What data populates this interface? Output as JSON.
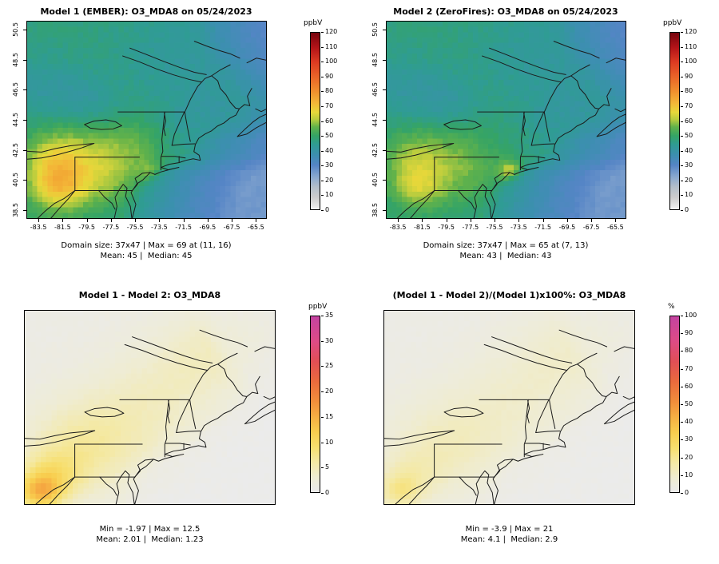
{
  "figure": {
    "background": "#ffffff",
    "scales": {
      "conc": {
        "min": 0,
        "max": 120,
        "stops": [
          [
            0,
            "#f2f2f2"
          ],
          [
            8,
            "#cdcdcd"
          ],
          [
            15,
            "#b4bfca"
          ],
          [
            22,
            "#8aa9cf"
          ],
          [
            30,
            "#5585c6"
          ],
          [
            37,
            "#3c8fb0"
          ],
          [
            44,
            "#2f9c93"
          ],
          [
            50,
            "#35a465"
          ],
          [
            56,
            "#62b24a"
          ],
          [
            61,
            "#b8cc3e"
          ],
          [
            66,
            "#e8d83a"
          ],
          [
            72,
            "#f3b838"
          ],
          [
            80,
            "#f0902e"
          ],
          [
            90,
            "#ea6428"
          ],
          [
            100,
            "#dd3b22"
          ],
          [
            110,
            "#b31318"
          ],
          [
            120,
            "#77050e"
          ]
        ]
      },
      "diff": {
        "min": 0,
        "max": 35,
        "stops": [
          [
            0,
            "#ebebeb"
          ],
          [
            3,
            "#efecd2"
          ],
          [
            6,
            "#f4e9a4"
          ],
          [
            9,
            "#f7df6e"
          ],
          [
            12,
            "#f8cd4e"
          ],
          [
            15,
            "#f6ae43"
          ],
          [
            18,
            "#f18f3b"
          ],
          [
            22,
            "#ea6a3d"
          ],
          [
            26,
            "#e14f55"
          ],
          [
            30,
            "#dd4b86"
          ],
          [
            35,
            "#c443a1"
          ]
        ]
      },
      "pct": {
        "min": 0,
        "max": 100,
        "stops": [
          [
            0,
            "#ebebeb"
          ],
          [
            8,
            "#efecd2"
          ],
          [
            17,
            "#f4e9a4"
          ],
          [
            25,
            "#f7df6e"
          ],
          [
            34,
            "#f8cd4e"
          ],
          [
            43,
            "#f6ae43"
          ],
          [
            51,
            "#f18f3b"
          ],
          [
            63,
            "#ea6a3d"
          ],
          [
            74,
            "#e14f55"
          ],
          [
            86,
            "#dd4b86"
          ],
          [
            100,
            "#c443a1"
          ]
        ]
      }
    },
    "panels": [
      {
        "id": "model1",
        "title": "Model 1 (EMBER): O3_MDA8 on 05/24/2023",
        "caption_line1": "Domain size: 37x47 | Max = 69 at (11, 16)",
        "caption_line2": "Mean: 45 |  Median: 45",
        "colorbar": {
          "unit": "ppbV",
          "scale": "conc",
          "ticks": [
            0,
            10,
            20,
            30,
            40,
            50,
            60,
            70,
            80,
            90,
            100,
            110,
            120
          ]
        },
        "x_ticks": [
          -83.5,
          -81.5,
          -79.5,
          -77.5,
          -75.5,
          -73.5,
          -71.5,
          -69.5,
          -67.5,
          -65.5
        ],
        "y_ticks": [
          38.5,
          40.5,
          42.5,
          44.5,
          46.5,
          48.5,
          50.5
        ]
      },
      {
        "id": "model2",
        "title": "Model 2 (ZeroFires): O3_MDA8 on 05/24/2023",
        "caption_line1": "Domain size: 37x47 | Max = 65 at (7, 13)",
        "caption_line2": "Mean: 43 |  Median: 43",
        "colorbar": {
          "unit": "ppbV",
          "scale": "conc",
          "ticks": [
            0,
            10,
            20,
            30,
            40,
            50,
            60,
            70,
            80,
            90,
            100,
            110,
            120
          ]
        },
        "x_ticks": [
          -83.5,
          -81.5,
          -79.5,
          -77.5,
          -75.5,
          -73.5,
          -71.5,
          -69.5,
          -67.5,
          -65.5
        ],
        "y_ticks": [
          38.5,
          40.5,
          42.5,
          44.5,
          46.5,
          48.5,
          50.5
        ]
      },
      {
        "id": "difference",
        "title": "Model 1 - Model 2: O3_MDA8",
        "caption_line1": "Min = -1.97 | Max = 12.5",
        "caption_line2": "Mean: 2.01 |  Median: 1.23",
        "colorbar": {
          "unit": "ppbV",
          "scale": "diff",
          "ticks": [
            0,
            5,
            10,
            15,
            20,
            25,
            30,
            35
          ]
        }
      },
      {
        "id": "percent-difference",
        "title": "(Model 1 - Model 2)/(Model 1)x100%: O3_MDA8",
        "caption_line1": "Min = -3.9 | Max = 21",
        "caption_line2": "Mean: 4.1 |  Median: 2.9",
        "colorbar": {
          "unit": "%",
          "scale": "pct",
          "ticks": [
            0,
            10,
            20,
            30,
            40,
            50,
            60,
            70,
            80,
            90,
            100
          ]
        }
      }
    ]
  },
  "chart_data": [
    {
      "type": "heatmap",
      "position": "top-left",
      "title": "Model 1 (EMBER): O3_MDA8 on 05/24/2023",
      "model": "Model 1 (EMBER)",
      "variable": "O3_MDA8",
      "date": "05/24/2023",
      "units": "ppbV",
      "grid": {
        "nx": 47,
        "ny": 37
      },
      "x_axis": {
        "range": [
          -84.5,
          -64.6
        ],
        "ticks": [
          -83.5,
          -81.5,
          -79.5,
          -77.5,
          -75.5,
          -73.5,
          -71.5,
          -69.5,
          -67.5,
          -65.5
        ]
      },
      "y_axis": {
        "range": [
          37.9,
          51.1
        ],
        "ticks": [
          38.5,
          40.5,
          42.5,
          44.5,
          46.5,
          48.5,
          50.5
        ]
      },
      "color_scale": {
        "units": "ppbV",
        "range": [
          0,
          120
        ],
        "ticks": [
          0,
          10,
          20,
          30,
          40,
          50,
          60,
          70,
          80,
          90,
          100,
          110,
          120
        ]
      },
      "stats": {
        "domain_size": "37x47",
        "max": 69,
        "max_at": [
          11,
          16
        ],
        "mean": 45,
        "median": 45
      },
      "approx_field": {
        "kind": "conc",
        "land_base": 47,
        "ocean_base": 44,
        "ocean_grad": 18,
        "noise": 2.5,
        "blobs": [
          {
            "x": 0.13,
            "y": 0.85,
            "r": 0.09,
            "a": 19
          },
          {
            "x": 0.1,
            "y": 0.7,
            "r": 0.09,
            "a": 11
          },
          {
            "x": 0.24,
            "y": 0.66,
            "r": 0.14,
            "a": 11
          },
          {
            "x": 0.35,
            "y": 0.79,
            "r": 0.11,
            "a": 8
          },
          {
            "x": 0.46,
            "y": 0.62,
            "r": 0.08,
            "a": 5
          },
          {
            "x": 0.52,
            "y": 0.77,
            "r": 0.04,
            "a": 8
          },
          {
            "x": 0.25,
            "y": 0.44,
            "r": 0.1,
            "a": -6
          },
          {
            "x": 0.06,
            "y": 0.34,
            "r": 0.12,
            "a": -5
          },
          {
            "x": 0.62,
            "y": 0.16,
            "r": 0.18,
            "a": -4
          },
          {
            "x": 0.78,
            "y": 0.48,
            "r": 0.14,
            "a": -5
          },
          {
            "x": 0.95,
            "y": 0.1,
            "r": 0.15,
            "a": -4
          }
        ]
      }
    },
    {
      "type": "heatmap",
      "position": "top-right",
      "title": "Model 2 (ZeroFires): O3_MDA8 on 05/24/2023",
      "model": "Model 2 (ZeroFires)",
      "variable": "O3_MDA8",
      "date": "05/24/2023",
      "units": "ppbV",
      "grid": {
        "nx": 47,
        "ny": 37
      },
      "x_axis": {
        "range": [
          -84.5,
          -64.6
        ],
        "ticks": [
          -83.5,
          -81.5,
          -79.5,
          -77.5,
          -75.5,
          -73.5,
          -71.5,
          -69.5,
          -67.5,
          -65.5
        ]
      },
      "y_axis": {
        "range": [
          37.9,
          51.1
        ],
        "ticks": [
          38.5,
          40.5,
          42.5,
          44.5,
          46.5,
          48.5,
          50.5
        ]
      },
      "color_scale": {
        "units": "ppbV",
        "range": [
          0,
          120
        ],
        "ticks": [
          0,
          10,
          20,
          30,
          40,
          50,
          60,
          70,
          80,
          90,
          100,
          110,
          120
        ]
      },
      "stats": {
        "domain_size": "37x47",
        "max": 65,
        "max_at": [
          7,
          13
        ],
        "mean": 43,
        "median": 43
      },
      "approx_field": {
        "kind": "conc",
        "land_base": 47,
        "ocean_base": 44,
        "ocean_grad": 18,
        "noise": 2.5,
        "blobs": [
          {
            "x": 0.13,
            "y": 0.85,
            "r": 0.08,
            "a": 13
          },
          {
            "x": 0.1,
            "y": 0.7,
            "r": 0.09,
            "a": 8
          },
          {
            "x": 0.24,
            "y": 0.66,
            "r": 0.14,
            "a": 8
          },
          {
            "x": 0.35,
            "y": 0.79,
            "r": 0.11,
            "a": 5
          },
          {
            "x": 0.52,
            "y": 0.765,
            "r": 0.035,
            "a": 16
          },
          {
            "x": 0.25,
            "y": 0.44,
            "r": 0.1,
            "a": -6
          },
          {
            "x": 0.06,
            "y": 0.34,
            "r": 0.12,
            "a": -5
          },
          {
            "x": 0.62,
            "y": 0.16,
            "r": 0.18,
            "a": -4
          },
          {
            "x": 0.78,
            "y": 0.48,
            "r": 0.14,
            "a": -5
          },
          {
            "x": 0.95,
            "y": 0.1,
            "r": 0.15,
            "a": -4
          }
        ]
      }
    },
    {
      "type": "heatmap",
      "position": "bottom-left",
      "title": "Model 1 - Model 2: O3_MDA8",
      "variable": "O3_MDA8",
      "units": "ppbV",
      "grid": {
        "nx": 47,
        "ny": 37
      },
      "x_axis": {
        "range": [
          -84.5,
          -64.6
        ]
      },
      "y_axis": {
        "range": [
          37.9,
          51.1
        ]
      },
      "color_scale": {
        "units": "ppbV",
        "range": [
          0,
          35
        ],
        "ticks": [
          0,
          5,
          10,
          15,
          20,
          25,
          30,
          35
        ]
      },
      "stats": {
        "min": -1.97,
        "max": 12.5,
        "mean": 2.01,
        "median": 1.23
      },
      "approx_field": {
        "kind": "diff",
        "land_base": 0.8,
        "ocean_base": 0.1,
        "ocean_grad": 0,
        "noise": 0.5,
        "blobs": [
          {
            "x": 0.06,
            "y": 0.94,
            "r": 0.06,
            "a": 10
          },
          {
            "x": 0.1,
            "y": 0.86,
            "r": 0.09,
            "a": 6
          },
          {
            "x": 0.22,
            "y": 0.72,
            "r": 0.16,
            "a": 4
          },
          {
            "x": 0.38,
            "y": 0.6,
            "r": 0.2,
            "a": 2.2
          },
          {
            "x": 0.55,
            "y": 0.42,
            "r": 0.18,
            "a": 1.6
          },
          {
            "x": 0.7,
            "y": 0.25,
            "r": 0.16,
            "a": 1.8
          },
          {
            "x": 0.85,
            "y": 0.12,
            "r": 0.15,
            "a": 2.0
          }
        ]
      }
    },
    {
      "type": "heatmap",
      "position": "bottom-right",
      "title": "(Model 1 - Model 2)/(Model 1)x100%: O3_MDA8",
      "variable": "O3_MDA8",
      "units": "%",
      "grid": {
        "nx": 47,
        "ny": 37
      },
      "x_axis": {
        "range": [
          -84.5,
          -64.6
        ]
      },
      "y_axis": {
        "range": [
          37.9,
          51.1
        ]
      },
      "color_scale": {
        "units": "%",
        "range": [
          0,
          100
        ],
        "ticks": [
          0,
          10,
          20,
          30,
          40,
          50,
          60,
          70,
          80,
          90,
          100
        ]
      },
      "stats": {
        "min": -3.9,
        "max": 21,
        "mean": 4.1,
        "median": 2.9
      },
      "approx_field": {
        "kind": "pct",
        "land_base": 2,
        "ocean_base": 0.5,
        "ocean_grad": 0,
        "noise": 1.2,
        "blobs": [
          {
            "x": 0.06,
            "y": 0.94,
            "r": 0.06,
            "a": 13
          },
          {
            "x": 0.1,
            "y": 0.86,
            "r": 0.09,
            "a": 8
          },
          {
            "x": 0.22,
            "y": 0.72,
            "r": 0.16,
            "a": 7
          },
          {
            "x": 0.38,
            "y": 0.6,
            "r": 0.2,
            "a": 4.5
          },
          {
            "x": 0.55,
            "y": 0.42,
            "r": 0.18,
            "a": 3.5
          },
          {
            "x": 0.7,
            "y": 0.25,
            "r": 0.16,
            "a": 4
          },
          {
            "x": 0.85,
            "y": 0.12,
            "r": 0.15,
            "a": 4.5
          }
        ]
      }
    }
  ]
}
